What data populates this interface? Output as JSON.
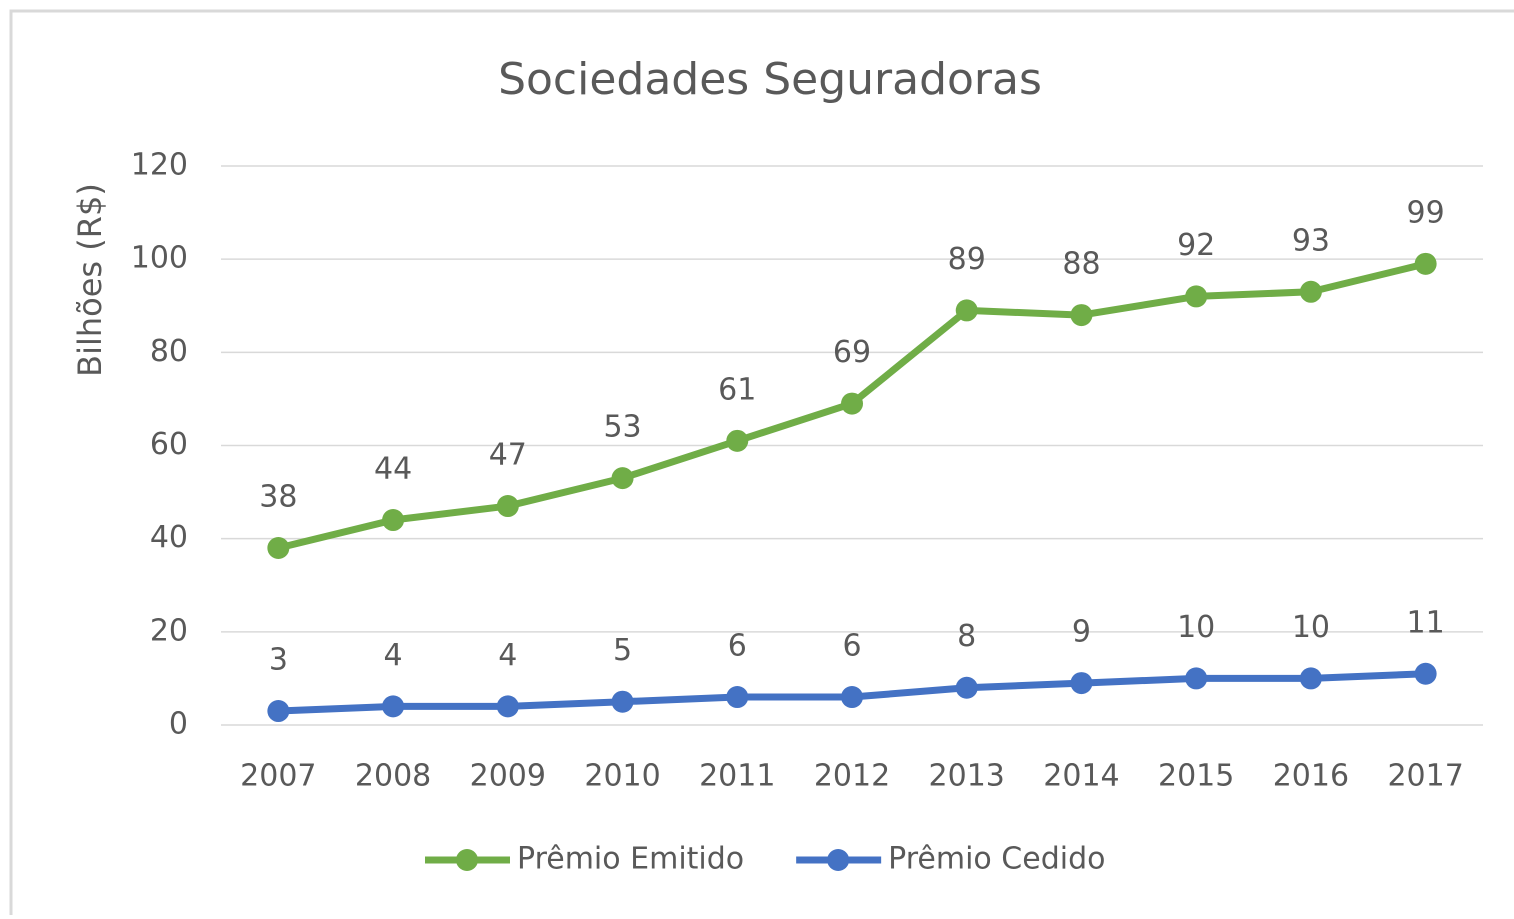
{
  "chart_data": {
    "type": "line",
    "title": "Sociedades Seguradoras",
    "y_label": "Bilhões (R$)",
    "categories": [
      "2007",
      "2008",
      "2009",
      "2010",
      "2011",
      "2012",
      "2013",
      "2014",
      "2015",
      "2016",
      "2017"
    ],
    "series": [
      {
        "name": "Prêmio Emitido",
        "color": "#70ad47",
        "values": [
          38,
          44,
          47,
          53,
          61,
          69,
          89,
          88,
          92,
          93,
          99
        ]
      },
      {
        "name": "Prêmio Cedido",
        "color": "#4472c4",
        "values": [
          3,
          4,
          4,
          5,
          6,
          6,
          8,
          9,
          10,
          10,
          11
        ]
      }
    ],
    "ylim": [
      0,
      120
    ],
    "yticks": [
      0,
      20,
      40,
      60,
      80,
      100,
      120
    ],
    "grid": true,
    "legend": "bottom"
  }
}
